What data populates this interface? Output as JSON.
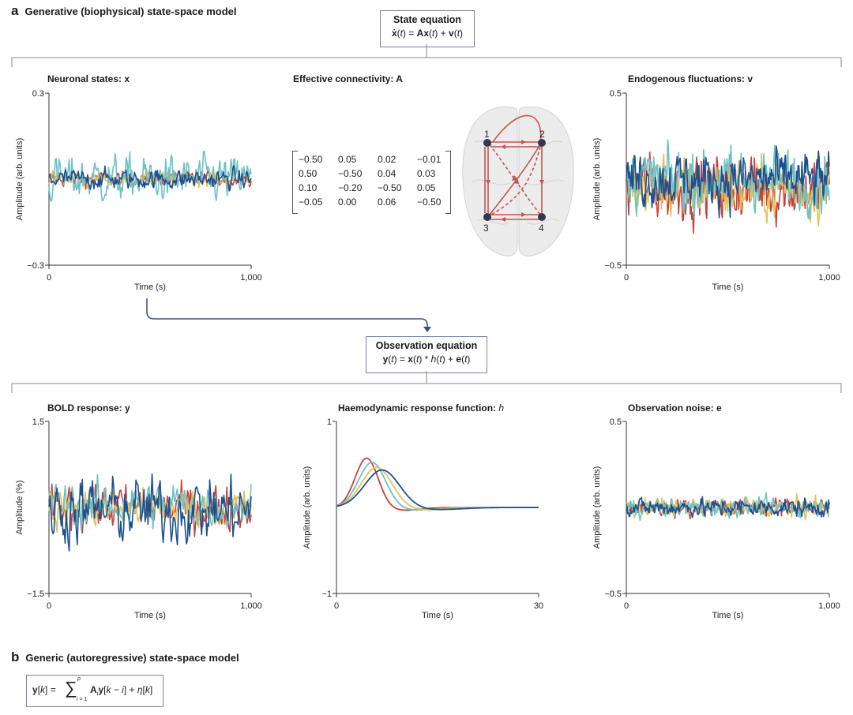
{
  "section_a": {
    "letter": "a",
    "title": "Generative (biophysical) state-space model"
  },
  "section_b": {
    "letter": "b",
    "title": "Generic (autoregressive) state-space model"
  },
  "state_eq": {
    "title": "State equation",
    "lhs": "ẋ",
    "t": "t",
    "A": "A",
    "x": "x",
    "v": "v"
  },
  "obs_eq": {
    "title": "Observation equation",
    "y": "y",
    "x": "x",
    "h": "h",
    "e": "e",
    "t": "t"
  },
  "ar_eq": {
    "y": "y",
    "k": "k",
    "sum": "∑",
    "upper": "p",
    "lower": "i = 1",
    "A": "A",
    "i": "i",
    "eta": "η"
  },
  "colors": {
    "red": "#c8423a",
    "yellow": "#e2c25a",
    "teal": "#6cc2c4",
    "blue": "#1f4f8e",
    "connectivity": "#c0554f",
    "node": "#2f3a4c",
    "box_border": "#7c7faa"
  },
  "panels": {
    "neuronal": {
      "title": "Neuronal states: ",
      "symbol": "x",
      "ylabel": "Amplitude (arb. units)",
      "xlabel": "Time (s)",
      "ymax": "0.3",
      "ymin": "−0.3",
      "xmin": "0",
      "xmax": "1,000"
    },
    "connectivity": {
      "title": "Effective connectivity: ",
      "symbol": "A"
    },
    "endogenous": {
      "title": "Endogenous fluctuations: ",
      "symbol": "v",
      "ylabel": "Amplitude (arb. units)",
      "xlabel": "Time (s)",
      "ymax": "0.5",
      "ymin": "−0.5",
      "xmin": "0",
      "xmax": "1,000"
    },
    "bold": {
      "title": "BOLD response: ",
      "symbol": "y",
      "ylabel": "Amplitude (%)",
      "xlabel": "Time (s)",
      "ymax": "1.5",
      "ymin": "−1.5",
      "xmin": "0",
      "xmax": "1,000"
    },
    "hrf": {
      "title": "Haemodynamic response function: ",
      "symbol": "h",
      "ylabel": "Amplitude (arb. units)",
      "xlabel": "Time (s)",
      "ymax": "1",
      "ymin": "−1",
      "xmin": "0",
      "xmax": "30"
    },
    "noise": {
      "title": "Observation noise: ",
      "symbol": "e",
      "ylabel": "Amplitude (arb. units)",
      "xlabel": "Time (s)",
      "ymax": "0.5",
      "ymin": "−0.5",
      "xmin": "0",
      "xmax": "1,000"
    }
  },
  "matrix": [
    [
      "−0.50",
      "0.05",
      "0.02",
      "−0.01"
    ],
    [
      "0.50",
      "−0.50",
      "0.04",
      "0.03"
    ],
    [
      "0.10",
      "−0.20",
      "−0.50",
      "0.05"
    ],
    [
      "−0.05",
      "0.00",
      "0.06",
      "−0.50"
    ]
  ],
  "nodes": [
    "1",
    "2",
    "3",
    "4"
  ],
  "chart_data": [
    {
      "type": "line",
      "title": "Neuronal states: x",
      "xlabel": "Time (s)",
      "ylabel": "Amplitude (arb. units)",
      "xlim": [
        0,
        1000
      ],
      "ylim": [
        -0.3,
        0.3
      ],
      "series": [
        {
          "color": "#c8423a",
          "mean": 0.0,
          "amplitude": 0.03
        },
        {
          "color": "#e2c25a",
          "mean": 0.0,
          "amplitude": 0.03
        },
        {
          "color": "#6cc2c4",
          "mean": 0.0,
          "amplitude": 0.09
        },
        {
          "color": "#1f4f8e",
          "mean": 0.0,
          "amplitude": 0.04
        }
      ]
    },
    {
      "type": "line",
      "title": "Endogenous fluctuations: v",
      "xlabel": "Time (s)",
      "ylabel": "Amplitude (arb. units)",
      "xlim": [
        0,
        1000
      ],
      "ylim": [
        -0.5,
        0.5
      ],
      "series": [
        {
          "color": "#c8423a",
          "mean": -0.05,
          "amplitude": 0.22
        },
        {
          "color": "#e2c25a",
          "mean": -0.05,
          "amplitude": 0.2
        },
        {
          "color": "#6cc2c4",
          "mean": 0.0,
          "amplitude": 0.2
        },
        {
          "color": "#1f4f8e",
          "mean": 0.0,
          "amplitude": 0.18
        }
      ]
    },
    {
      "type": "line",
      "title": "BOLD response: y",
      "xlabel": "Time (s)",
      "ylabel": "Amplitude (%)",
      "xlim": [
        0,
        1000
      ],
      "ylim": [
        -1.5,
        1.5
      ],
      "series": [
        {
          "color": "#c8423a",
          "mean": 0.0,
          "amplitude": 0.45
        },
        {
          "color": "#e2c25a",
          "mean": 0.0,
          "amplitude": 0.4
        },
        {
          "color": "#6cc2c4",
          "mean": 0.05,
          "amplitude": 0.45
        },
        {
          "color": "#1f4f8e",
          "mean": -0.05,
          "amplitude": 0.65
        }
      ]
    },
    {
      "type": "line",
      "title": "Haemodynamic response function: h",
      "xlabel": "Time (s)",
      "ylabel": "Amplitude (arb. units)",
      "xlim": [
        0,
        30
      ],
      "ylim": [
        -1,
        1
      ],
      "series": [
        {
          "color": "#c8423a",
          "peak_time": 4.5,
          "peak": 0.58
        },
        {
          "color": "#6cc2c4",
          "peak_time": 5.3,
          "peak": 0.53
        },
        {
          "color": "#e2c25a",
          "peak_time": 6.0,
          "peak": 0.47
        },
        {
          "color": "#1f4f8e",
          "peak_time": 6.8,
          "peak": 0.44
        }
      ]
    },
    {
      "type": "line",
      "title": "Observation noise: e",
      "xlabel": "Time (s)",
      "ylabel": "Amplitude (arb. units)",
      "xlim": [
        0,
        1000
      ],
      "ylim": [
        -0.5,
        0.5
      ],
      "series": [
        {
          "color": "#c8423a",
          "mean": 0.0,
          "amplitude": 0.06
        },
        {
          "color": "#e2c25a",
          "mean": 0.0,
          "amplitude": 0.06
        },
        {
          "color": "#6cc2c4",
          "mean": 0.0,
          "amplitude": 0.06
        },
        {
          "color": "#1f4f8e",
          "mean": 0.0,
          "amplitude": 0.06
        }
      ]
    }
  ]
}
